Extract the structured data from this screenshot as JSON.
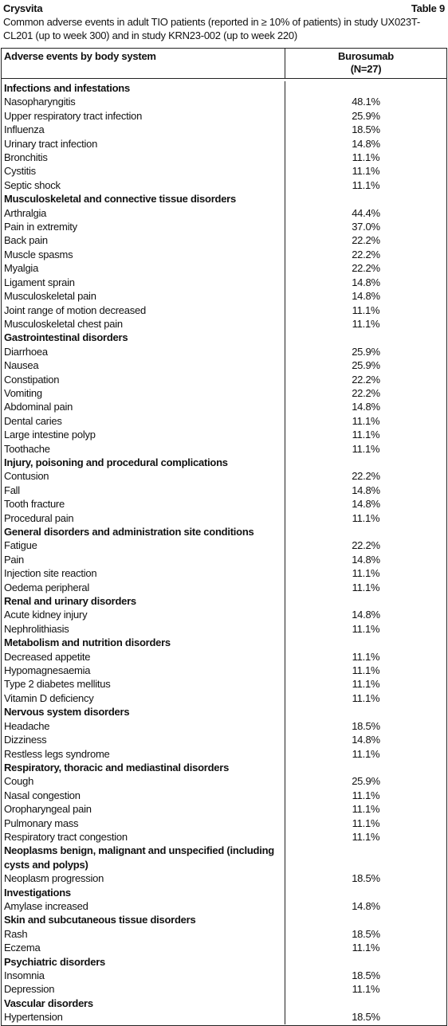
{
  "header": {
    "brand": "Crysvita",
    "table_label": "Table 9",
    "caption": "Common adverse events in adult TIO patients (reported in ≥ 10% of patients) in study UX023T-CL201 (up to week 300) and in study KRN23-002 (up to week 220)"
  },
  "table": {
    "columns": [
      "Adverse events by body system",
      "Burosumab",
      "(N=27)"
    ],
    "groups": [
      {
        "name": "Infections and infestations",
        "items": [
          [
            "Nasopharyngitis",
            "48.1%"
          ],
          [
            "Upper respiratory tract infection",
            "25.9%"
          ],
          [
            "Influenza",
            "18.5%"
          ],
          [
            "Urinary tract infection",
            "14.8%"
          ],
          [
            "Bronchitis",
            "11.1%"
          ],
          [
            "Cystitis",
            "11.1%"
          ],
          [
            "Septic shock",
            "11.1%"
          ]
        ]
      },
      {
        "name": "Musculoskeletal and connective tissue disorders",
        "items": [
          [
            "Arthralgia",
            "44.4%"
          ],
          [
            "Pain in extremity",
            "37.0%"
          ],
          [
            "Back pain",
            "22.2%"
          ],
          [
            "Muscle spasms",
            "22.2%"
          ],
          [
            "Myalgia",
            "22.2%"
          ],
          [
            "Ligament sprain",
            "14.8%"
          ],
          [
            "Musculoskeletal pain",
            "14.8%"
          ],
          [
            "Joint range of motion decreased",
            "11.1%"
          ],
          [
            "Musculoskeletal chest pain",
            "11.1%"
          ]
        ]
      },
      {
        "name": "Gastrointestinal disorders",
        "items": [
          [
            "Diarrhoea",
            "25.9%"
          ],
          [
            "Nausea",
            "25.9%"
          ],
          [
            "Constipation",
            "22.2%"
          ],
          [
            "Vomiting",
            "22.2%"
          ],
          [
            "Abdominal pain",
            "14.8%"
          ],
          [
            "Dental caries",
            "11.1%"
          ],
          [
            "Large intestine polyp",
            "11.1%"
          ],
          [
            "Toothache",
            "11.1%"
          ]
        ]
      },
      {
        "name": "Injury, poisoning and procedural complications",
        "items": [
          [
            "Contusion",
            "22.2%"
          ],
          [
            "Fall",
            "14.8%"
          ],
          [
            "Tooth fracture",
            "14.8%"
          ],
          [
            "Procedural pain",
            "11.1%"
          ]
        ]
      },
      {
        "name": "General disorders and administration site conditions",
        "items": [
          [
            "Fatigue",
            "22.2%"
          ],
          [
            "Pain",
            "14.8%"
          ],
          [
            "Injection site reaction",
            "11.1%"
          ],
          [
            "Oedema peripheral",
            "11.1%"
          ]
        ]
      },
      {
        "name": "Renal and urinary disorders",
        "items": [
          [
            "Acute kidney injury",
            "14.8%"
          ],
          [
            "Nephrolithiasis",
            "11.1%"
          ]
        ]
      },
      {
        "name": "Metabolism and nutrition disorders",
        "items": [
          [
            "Decreased appetite",
            "11.1%"
          ],
          [
            "Hypomagnesaemia",
            "11.1%"
          ],
          [
            "Type 2 diabetes mellitus",
            "11.1%"
          ],
          [
            "Vitamin D deficiency",
            "11.1%"
          ]
        ]
      },
      {
        "name": "Nervous system disorders",
        "items": [
          [
            "Headache",
            "18.5%"
          ],
          [
            "Dizziness",
            "14.8%"
          ],
          [
            "Restless legs syndrome",
            "11.1%"
          ]
        ]
      },
      {
        "name": "Respiratory, thoracic and mediastinal disorders",
        "items": [
          [
            "Cough",
            "25.9%"
          ],
          [
            "Nasal congestion",
            "11.1%"
          ],
          [
            "Oropharyngeal pain",
            "11.1%"
          ],
          [
            "Pulmonary mass",
            "11.1%"
          ],
          [
            "Respiratory tract congestion",
            "11.1%"
          ]
        ]
      },
      {
        "name": "Neoplasms benign, malignant and unspecified (including cysts and polyps)",
        "items": [
          [
            "Neoplasm progression",
            "18.5%"
          ]
        ]
      },
      {
        "name": "Investigations",
        "items": [
          [
            "Amylase increased",
            "14.8%"
          ]
        ]
      },
      {
        "name": "Skin and subcutaneous tissue disorders",
        "items": [
          [
            "Rash",
            "18.5%"
          ],
          [
            "Eczema",
            "11.1%"
          ]
        ]
      },
      {
        "name": "Psychiatric disorders",
        "items": [
          [
            "Insomnia",
            "18.5%"
          ],
          [
            "Depression",
            "11.1%"
          ]
        ]
      },
      {
        "name": "Vascular disorders",
        "items": [
          [
            "Hypertension",
            "18.5%"
          ]
        ]
      }
    ]
  }
}
